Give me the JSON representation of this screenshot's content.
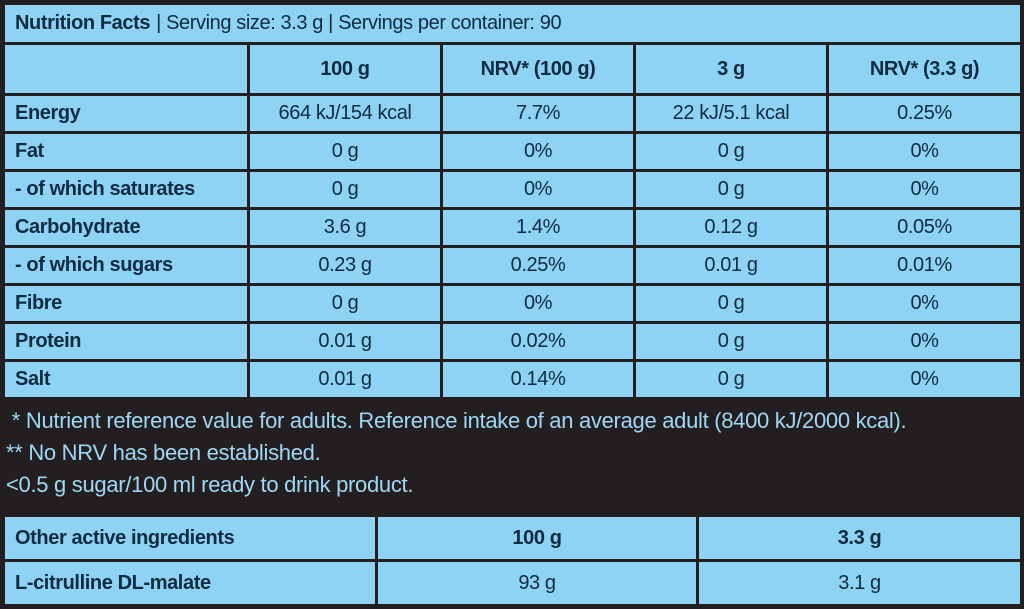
{
  "title": "Nutrition Facts",
  "subtitle": "| Serving size: 3.3 g | Servings per container: 90",
  "headers": [
    "",
    "100 g",
    "NRV* (100 g)",
    "3 g",
    "NRV* (3.3 g)"
  ],
  "rows": [
    [
      "Energy",
      "664 kJ/154 kcal",
      "7.7%",
      "22 kJ/5.1 kcal",
      "0.25%"
    ],
    [
      "Fat",
      "0 g",
      "0%",
      "0 g",
      "0%"
    ],
    [
      "- of which saturates",
      "0 g",
      "0%",
      "0 g",
      "0%"
    ],
    [
      "Carbohydrate",
      "3.6 g",
      "1.4%",
      "0.12 g",
      "0.05%"
    ],
    [
      "- of which sugars",
      "0.23 g",
      "0.25%",
      "0.01 g",
      "0.01%"
    ],
    [
      "Fibre",
      "0 g",
      "0%",
      "0 g",
      "0%"
    ],
    [
      "Protein",
      "0.01 g",
      "0.02%",
      "0 g",
      "0%"
    ],
    [
      "Salt",
      "0.01 g",
      "0.14%",
      "0 g",
      "0%"
    ]
  ],
  "notes": [
    " * Nutrient reference value for adults. Reference intake of an average adult (8400 kJ/2000 kcal).",
    "** No NRV has been established.",
    "<0.5 g sugar/100 ml ready to drink product."
  ],
  "other": {
    "headers": [
      "Other active ingredients",
      "100 g",
      "3.3 g"
    ],
    "rows": [
      [
        "L-citrulline DL-malate",
        "93 g",
        "3.1 g"
      ]
    ]
  }
}
